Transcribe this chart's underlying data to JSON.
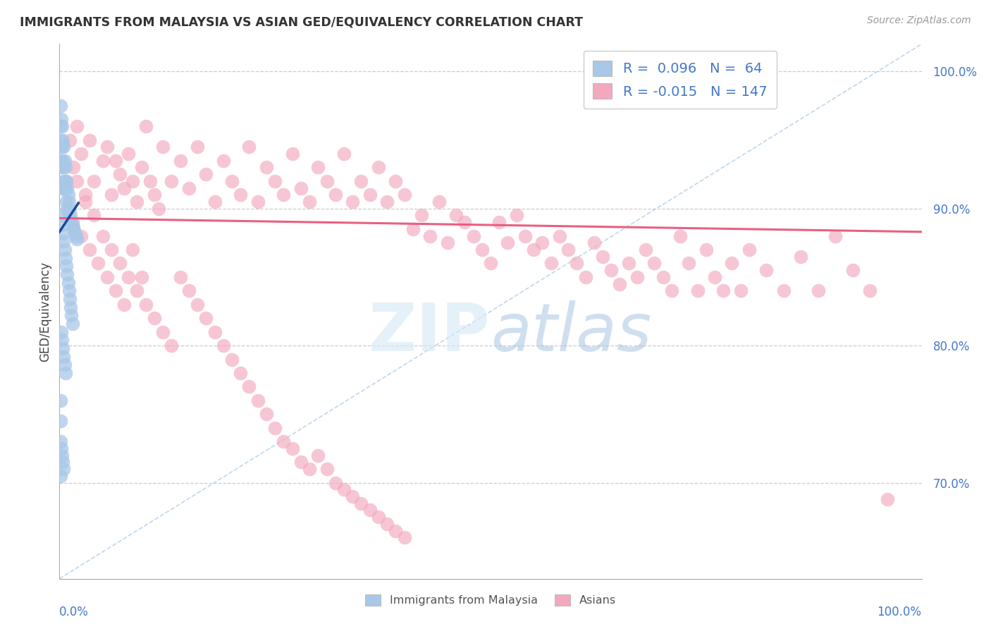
{
  "title": "IMMIGRANTS FROM MALAYSIA VS ASIAN GED/EQUIVALENCY CORRELATION CHART",
  "source": "Source: ZipAtlas.com",
  "ylabel": "GED/Equivalency",
  "yticks": [
    0.7,
    0.8,
    0.9,
    1.0
  ],
  "ytick_labels": [
    "70.0%",
    "80.0%",
    "90.0%",
    "100.0%"
  ],
  "legend_r_blue": "0.096",
  "legend_n_blue": "64",
  "legend_r_pink": "-0.015",
  "legend_n_pink": "147",
  "blue_color": "#a8c8e8",
  "pink_color": "#f4a8be",
  "blue_line_color": "#1a4a9a",
  "pink_line_color": "#e86080",
  "ref_line_color": "#b0cce8",
  "watermark_color": "#c5ddf0",
  "xlim": [
    0.0,
    1.0
  ],
  "ylim": [
    0.63,
    1.02
  ],
  "blue_x": [
    0.001,
    0.001,
    0.001,
    0.002,
    0.002,
    0.002,
    0.003,
    0.003,
    0.003,
    0.003,
    0.004,
    0.004,
    0.004,
    0.005,
    0.005,
    0.005,
    0.006,
    0.006,
    0.007,
    0.007,
    0.008,
    0.008,
    0.009,
    0.009,
    0.01,
    0.01,
    0.011,
    0.012,
    0.013,
    0.014,
    0.015,
    0.016,
    0.017,
    0.018,
    0.019,
    0.02,
    0.002,
    0.003,
    0.004,
    0.005,
    0.006,
    0.007,
    0.008,
    0.009,
    0.01,
    0.011,
    0.012,
    0.013,
    0.014,
    0.015,
    0.002,
    0.003,
    0.004,
    0.005,
    0.006,
    0.007,
    0.001,
    0.001,
    0.001,
    0.002,
    0.003,
    0.004,
    0.005,
    0.001
  ],
  "blue_y": [
    0.975,
    0.96,
    0.945,
    0.965,
    0.95,
    0.935,
    0.96,
    0.945,
    0.93,
    0.915,
    0.95,
    0.935,
    0.92,
    0.945,
    0.93,
    0.915,
    0.935,
    0.92,
    0.93,
    0.915,
    0.92,
    0.905,
    0.915,
    0.9,
    0.91,
    0.895,
    0.905,
    0.9,
    0.895,
    0.89,
    0.888,
    0.886,
    0.884,
    0.882,
    0.88,
    0.878,
    0.895,
    0.888,
    0.882,
    0.876,
    0.87,
    0.864,
    0.858,
    0.852,
    0.846,
    0.84,
    0.834,
    0.828,
    0.822,
    0.816,
    0.81,
    0.804,
    0.798,
    0.792,
    0.786,
    0.78,
    0.76,
    0.745,
    0.73,
    0.725,
    0.72,
    0.715,
    0.71,
    0.705
  ],
  "pink_x": [
    0.008,
    0.012,
    0.016,
    0.02,
    0.025,
    0.03,
    0.035,
    0.04,
    0.05,
    0.055,
    0.06,
    0.065,
    0.07,
    0.075,
    0.08,
    0.085,
    0.09,
    0.095,
    0.1,
    0.105,
    0.11,
    0.115,
    0.12,
    0.13,
    0.14,
    0.15,
    0.16,
    0.17,
    0.18,
    0.19,
    0.2,
    0.21,
    0.22,
    0.23,
    0.24,
    0.25,
    0.26,
    0.27,
    0.28,
    0.29,
    0.3,
    0.31,
    0.32,
    0.33,
    0.34,
    0.35,
    0.36,
    0.37,
    0.38,
    0.39,
    0.4,
    0.41,
    0.42,
    0.43,
    0.44,
    0.45,
    0.46,
    0.47,
    0.48,
    0.49,
    0.5,
    0.51,
    0.52,
    0.53,
    0.54,
    0.55,
    0.56,
    0.57,
    0.58,
    0.59,
    0.6,
    0.61,
    0.62,
    0.63,
    0.64,
    0.65,
    0.66,
    0.67,
    0.68,
    0.69,
    0.7,
    0.71,
    0.72,
    0.73,
    0.74,
    0.75,
    0.76,
    0.77,
    0.78,
    0.79,
    0.8,
    0.82,
    0.84,
    0.86,
    0.88,
    0.9,
    0.92,
    0.94,
    0.96,
    0.015,
    0.025,
    0.035,
    0.045,
    0.055,
    0.065,
    0.075,
    0.085,
    0.095,
    0.02,
    0.03,
    0.04,
    0.05,
    0.06,
    0.07,
    0.08,
    0.09,
    0.1,
    0.11,
    0.12,
    0.13,
    0.14,
    0.15,
    0.16,
    0.17,
    0.18,
    0.19,
    0.2,
    0.21,
    0.22,
    0.23,
    0.24,
    0.25,
    0.26,
    0.27,
    0.28,
    0.29,
    0.3,
    0.31,
    0.32,
    0.33,
    0.34,
    0.35,
    0.36,
    0.37,
    0.38,
    0.39,
    0.4
  ],
  "pink_y": [
    0.92,
    0.95,
    0.93,
    0.96,
    0.94,
    0.91,
    0.95,
    0.92,
    0.935,
    0.945,
    0.91,
    0.935,
    0.925,
    0.915,
    0.94,
    0.92,
    0.905,
    0.93,
    0.96,
    0.92,
    0.91,
    0.9,
    0.945,
    0.92,
    0.935,
    0.915,
    0.945,
    0.925,
    0.905,
    0.935,
    0.92,
    0.91,
    0.945,
    0.905,
    0.93,
    0.92,
    0.91,
    0.94,
    0.915,
    0.905,
    0.93,
    0.92,
    0.91,
    0.94,
    0.905,
    0.92,
    0.91,
    0.93,
    0.905,
    0.92,
    0.91,
    0.885,
    0.895,
    0.88,
    0.905,
    0.875,
    0.895,
    0.89,
    0.88,
    0.87,
    0.86,
    0.89,
    0.875,
    0.895,
    0.88,
    0.87,
    0.875,
    0.86,
    0.88,
    0.87,
    0.86,
    0.85,
    0.875,
    0.865,
    0.855,
    0.845,
    0.86,
    0.85,
    0.87,
    0.86,
    0.85,
    0.84,
    0.88,
    0.86,
    0.84,
    0.87,
    0.85,
    0.84,
    0.86,
    0.84,
    0.87,
    0.855,
    0.84,
    0.865,
    0.84,
    0.88,
    0.855,
    0.84,
    0.688,
    0.89,
    0.88,
    0.87,
    0.86,
    0.85,
    0.84,
    0.83,
    0.87,
    0.85,
    0.92,
    0.905,
    0.895,
    0.88,
    0.87,
    0.86,
    0.85,
    0.84,
    0.83,
    0.82,
    0.81,
    0.8,
    0.85,
    0.84,
    0.83,
    0.82,
    0.81,
    0.8,
    0.79,
    0.78,
    0.77,
    0.76,
    0.75,
    0.74,
    0.73,
    0.725,
    0.715,
    0.71,
    0.72,
    0.71,
    0.7,
    0.695,
    0.69,
    0.685,
    0.68,
    0.675,
    0.67,
    0.665,
    0.66
  ],
  "pink_trend_x": [
    0.0,
    1.0
  ],
  "pink_trend_y": [
    0.893,
    0.883
  ],
  "blue_trend_x": [
    0.0,
    0.022
  ],
  "blue_trend_y": [
    0.883,
    0.904
  ]
}
